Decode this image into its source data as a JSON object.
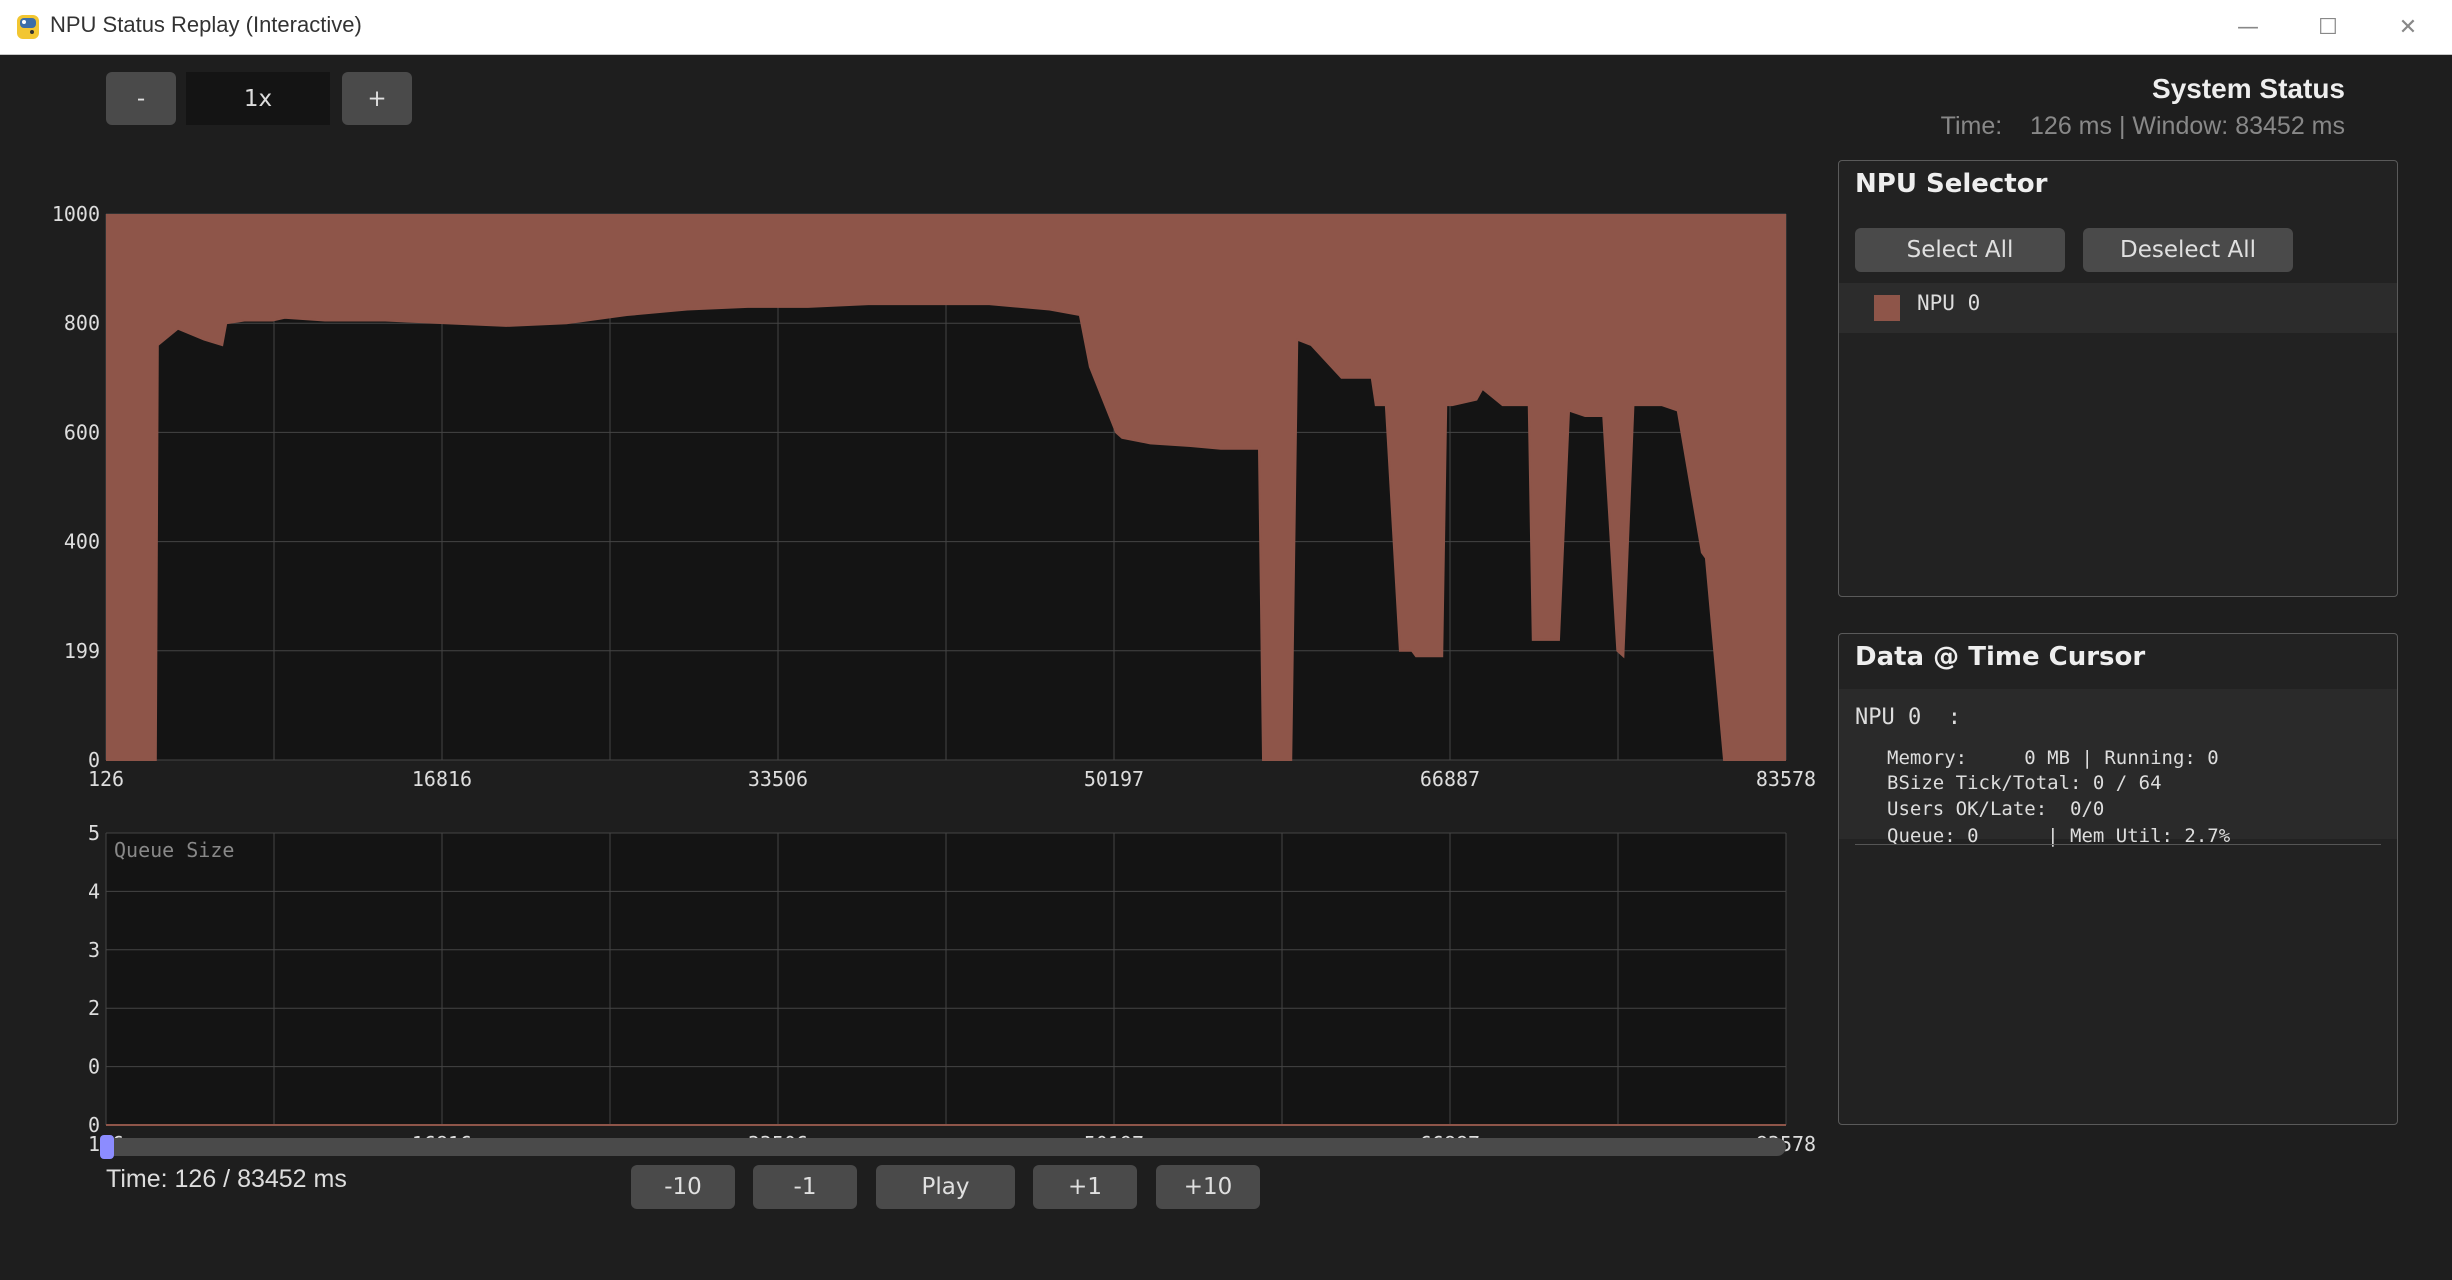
{
  "window": {
    "title": "NPU Status Replay (Interactive)",
    "minimize": "—",
    "maximize": "☐",
    "close": "✕"
  },
  "speed": {
    "minus": "-",
    "value": "1x",
    "plus": "+"
  },
  "status": {
    "title": "System Status",
    "time_label": "Time:",
    "time_value": "126 ms",
    "window_label": "Window: 83452 ms"
  },
  "npu_selector": {
    "title": "NPU Selector",
    "select_all": "Select All",
    "deselect_all": "Deselect All",
    "items": [
      {
        "label": "NPU 0",
        "color": "#8e5549"
      }
    ]
  },
  "cursor_data": {
    "title": "Data @ Time Cursor",
    "npu_header": "NPU 0  :",
    "lines": [
      "Memory:     0 MB | Running: 0",
      "BSize Tick/Total: 0 / 64",
      "Users OK/Late:  0/0",
      "Queue: 0      | Mem Util: 2.7%"
    ]
  },
  "playback": {
    "time_text": "Time: 126 / 83452 ms",
    "buttons": [
      "-10",
      "-1",
      "Play",
      "+1",
      "+10"
    ],
    "position": 0.0
  },
  "colors": {
    "series": "#8e5549",
    "plot_bg": "#141414",
    "grid": "#444444",
    "accent": "#8c8cff"
  },
  "chart_data": [
    {
      "type": "area",
      "title": "",
      "series": [
        {
          "name": "NPU 0"
        }
      ],
      "x_ticks": [
        126,
        16816,
        33506,
        50197,
        66887,
        83578
      ],
      "y_tick_labels": [
        "1000",
        "800",
        "600",
        "400",
        "199",
        "0"
      ],
      "xlim": [
        126,
        83578
      ],
      "ylim": [
        0,
        1000
      ],
      "x": [
        126,
        2600,
        2700,
        3700,
        5000,
        5900,
        6100,
        7000,
        8400,
        9000,
        11000,
        14000,
        17000,
        20000,
        23000,
        26000,
        29000,
        32000,
        35000,
        38000,
        41000,
        44000,
        47000,
        48500,
        49000,
        50300,
        50600,
        52000,
        54000,
        55500,
        57400,
        57600,
        59000,
        59300,
        60000,
        61500,
        63000,
        63200,
        63700,
        64400,
        65000,
        65200,
        66500,
        66700,
        67000,
        68200,
        68500,
        69500,
        70800,
        71000,
        72300,
        72800,
        73600,
        74500,
        75200,
        75500,
        76000,
        77400,
        78200,
        79400,
        79600,
        80500,
        81300,
        82600,
        83200,
        83578
      ],
      "y": [
        0,
        0,
        760,
        790,
        770,
        760,
        800,
        805,
        805,
        810,
        805,
        805,
        800,
        795,
        800,
        815,
        825,
        830,
        830,
        835,
        835,
        835,
        825,
        815,
        720,
        600,
        590,
        580,
        575,
        570,
        570,
        0,
        0,
        770,
        760,
        700,
        700,
        650,
        650,
        200,
        200,
        190,
        190,
        650,
        650,
        660,
        680,
        650,
        650,
        220,
        220,
        640,
        630,
        630,
        200,
        190,
        650,
        650,
        640,
        380,
        370,
        0,
        0,
        0,
        0,
        0
      ]
    },
    {
      "type": "line",
      "title": "Queue Size",
      "series": [
        {
          "name": "NPU 0"
        }
      ],
      "x_ticks": [
        126,
        16816,
        33506,
        50197,
        66887,
        83578
      ],
      "y_tick_labels": [
        "5",
        "4",
        "3",
        "2",
        "0",
        "0"
      ],
      "xlim": [
        126,
        83578
      ],
      "ylim": [
        0,
        5
      ],
      "x": [
        126,
        83578
      ],
      "y": [
        0,
        0
      ]
    }
  ]
}
